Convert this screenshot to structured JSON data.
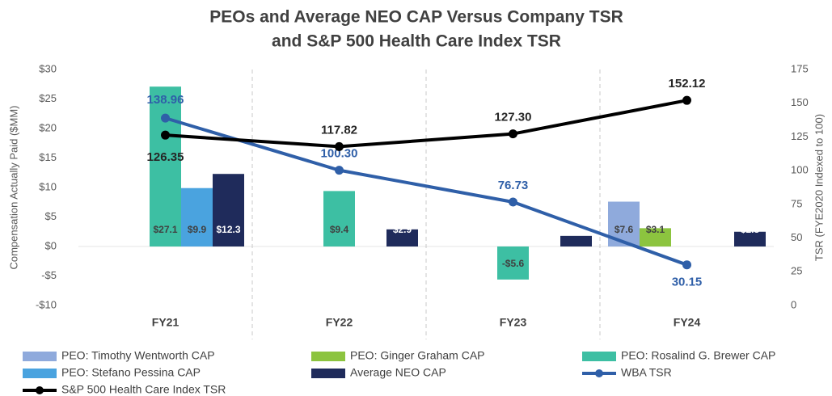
{
  "chart_data": {
    "type": "combo",
    "title": [
      "PEOs and Average NEO CAP Versus Company TSR",
      "and S&P 500 Health Care Index TSR"
    ],
    "ylabel": "Compensation Actually Paid ($MM)",
    "y2label": "TSR (FYE2020 Indexed to 100)",
    "categories": [
      "FY21",
      "FY22",
      "FY23",
      "FY24"
    ],
    "ylim": [
      -10,
      30
    ],
    "yticks": [
      {
        "value": -10,
        "label": "-$10"
      },
      {
        "value": -5,
        "label": "-$5"
      },
      {
        "value": 0,
        "label": "$0"
      },
      {
        "value": 5,
        "label": "$5"
      },
      {
        "value": 10,
        "label": "$10"
      },
      {
        "value": 15,
        "label": "$15"
      },
      {
        "value": 20,
        "label": "$20"
      },
      {
        "value": 25,
        "label": "$25"
      },
      {
        "value": 30,
        "label": "$30"
      }
    ],
    "y2lim": [
      0,
      175
    ],
    "y2ticks": [
      0,
      25,
      50,
      75,
      100,
      125,
      150,
      175
    ],
    "grid": false,
    "legend": "bottom",
    "series": [
      {
        "name": "PEO: Timothy Wentworth CAP",
        "type": "bar",
        "color": "#8faadc",
        "values": [
          null,
          null,
          null,
          7.6
        ],
        "value_labels": [
          null,
          null,
          null,
          "$7.6"
        ]
      },
      {
        "name": "PEO: Ginger Graham CAP",
        "type": "bar",
        "color": "#8cc43f",
        "values": [
          null,
          null,
          null,
          3.1
        ],
        "value_labels": [
          null,
          null,
          null,
          "$3.1"
        ]
      },
      {
        "name": "PEO: Rosalind G. Brewer CAP",
        "type": "bar",
        "color": "#3dbfa3",
        "values": [
          27.1,
          9.4,
          -5.6,
          null
        ],
        "value_labels": [
          "$27.1",
          "$9.4",
          "-$5.6",
          null
        ]
      },
      {
        "name": "PEO: Stefano Pessina CAP",
        "type": "bar",
        "color": "#4aa3df",
        "values": [
          9.9,
          null,
          null,
          null
        ],
        "value_labels": [
          "$9.9",
          null,
          null,
          null
        ]
      },
      {
        "name": "Average NEO CAP",
        "type": "bar",
        "color": "#1f2b5b",
        "values": [
          12.3,
          2.9,
          1.8,
          2.5
        ],
        "value_labels": [
          "$12.3",
          "$2.9",
          "$1.8",
          "$2.5"
        ]
      },
      {
        "name": "WBA TSR",
        "type": "line",
        "axis": "y2",
        "color": "#2f5fa8",
        "values": [
          138.96,
          100.3,
          76.73,
          30.15
        ],
        "value_labels": [
          "138.96",
          "100.30",
          "76.73",
          "30.15"
        ]
      },
      {
        "name": "S&P 500 Health Care Index TSR",
        "type": "line",
        "axis": "y2",
        "color": "#000000",
        "values": [
          126.35,
          117.82,
          127.3,
          152.12
        ],
        "value_labels": [
          "126.35",
          "117.82",
          "127.30",
          "152.12"
        ]
      }
    ]
  }
}
